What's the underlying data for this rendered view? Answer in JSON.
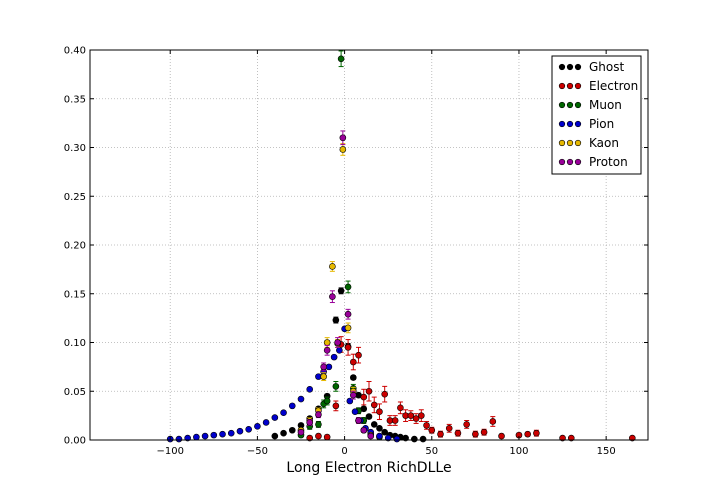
{
  "chart_data": {
    "type": "scatter",
    "title": "",
    "xlabel": "Long Electron RichDLLe",
    "ylabel": "",
    "xlim": [
      -146,
      174
    ],
    "ylim": [
      0,
      0.4
    ],
    "xticks": [
      -100,
      -50,
      0,
      50,
      100,
      150
    ],
    "yticks": [
      0.0,
      0.05,
      0.1,
      0.15,
      0.2,
      0.25,
      0.3,
      0.35,
      0.4
    ],
    "xtick_labels": [
      "−100",
      "−50",
      "0",
      "50",
      "100",
      "150"
    ],
    "ytick_labels": [
      "0.00",
      "0.05",
      "0.10",
      "0.15",
      "0.20",
      "0.25",
      "0.30",
      "0.35",
      "0.40"
    ],
    "grid": true,
    "legend_position": "upper right",
    "series": [
      {
        "name": "Ghost",
        "color": "#000000",
        "x": [
          -40,
          -35,
          -30,
          -25,
          -20,
          -15,
          -10,
          -5,
          -2,
          2,
          5,
          8,
          11,
          14,
          17,
          20,
          23,
          26,
          29,
          32,
          35,
          40,
          45
        ],
        "y": [
          0.004,
          0.007,
          0.01,
          0.015,
          0.022,
          0.032,
          0.045,
          0.123,
          0.153,
          0.096,
          0.064,
          0.046,
          0.032,
          0.024,
          0.016,
          0.012,
          0.008,
          0.005,
          0.004,
          0.003,
          0.002,
          0.001,
          0.001
        ],
        "err": [
          0.001,
          0.001,
          0.001,
          0.001,
          0.002,
          0.002,
          0.002,
          0.003,
          0.003,
          0.003,
          0.002,
          0.002,
          0.002,
          0.002,
          0.001,
          0.001,
          0.001,
          0.001,
          0.001,
          0.001,
          0.001,
          0.001,
          0.001
        ]
      },
      {
        "name": "Electron",
        "color": "#cc0000",
        "x": [
          -20,
          -15,
          -10,
          -5,
          -2,
          2,
          5,
          8,
          11,
          14,
          17,
          20,
          23,
          26,
          29,
          32,
          35,
          38,
          41,
          44,
          47,
          50,
          55,
          60,
          65,
          70,
          75,
          80,
          85,
          90,
          100,
          105,
          110,
          125,
          130,
          165
        ],
        "y": [
          0.002,
          0.004,
          0.003,
          0.035,
          0.098,
          0.095,
          0.08,
          0.087,
          0.044,
          0.05,
          0.036,
          0.029,
          0.047,
          0.02,
          0.02,
          0.033,
          0.025,
          0.025,
          0.022,
          0.025,
          0.015,
          0.01,
          0.006,
          0.012,
          0.007,
          0.016,
          0.006,
          0.008,
          0.019,
          0.004,
          0.005,
          0.006,
          0.007,
          0.002,
          0.002,
          0.002
        ],
        "err": [
          0.002,
          0.002,
          0.002,
          0.005,
          0.008,
          0.008,
          0.008,
          0.008,
          0.008,
          0.01,
          0.008,
          0.008,
          0.008,
          0.005,
          0.005,
          0.006,
          0.006,
          0.005,
          0.005,
          0.006,
          0.004,
          0.003,
          0.003,
          0.004,
          0.003,
          0.004,
          0.003,
          0.003,
          0.005,
          0.002,
          0.002,
          0.002,
          0.003,
          0.001,
          0.001,
          0.001
        ]
      },
      {
        "name": "Muon",
        "color": "#006600",
        "x": [
          -25,
          -20,
          -15,
          -12,
          -10,
          -5,
          -2,
          2,
          5,
          8,
          11,
          15,
          20
        ],
        "y": [
          0.005,
          0.014,
          0.016,
          0.037,
          0.04,
          0.055,
          0.391,
          0.157,
          0.053,
          0.03,
          0.02,
          0.007,
          0.003
        ],
        "err": [
          0.002,
          0.003,
          0.003,
          0.004,
          0.004,
          0.005,
          0.008,
          0.006,
          0.004,
          0.003,
          0.003,
          0.002,
          0.001
        ]
      },
      {
        "name": "Pion",
        "color": "#0000cc",
        "x": [
          -100,
          -95,
          -90,
          -85,
          -80,
          -75,
          -70,
          -65,
          -60,
          -55,
          -50,
          -45,
          -40,
          -35,
          -30,
          -25,
          -20,
          -15,
          -12,
          -9,
          -6,
          -3,
          0,
          3,
          6,
          9,
          12,
          15,
          20,
          25,
          30
        ],
        "y": [
          0.001,
          0.001,
          0.002,
          0.003,
          0.004,
          0.005,
          0.006,
          0.007,
          0.009,
          0.011,
          0.014,
          0.018,
          0.023,
          0.028,
          0.035,
          0.042,
          0.052,
          0.065,
          0.07,
          0.075,
          0.085,
          0.092,
          0.114,
          0.04,
          0.029,
          0.02,
          0.012,
          0.008,
          0.004,
          0.002,
          0.001
        ],
        "err": [
          0.0005,
          0.0005,
          0.0005,
          0.0005,
          0.0005,
          0.0005,
          0.0005,
          0.0005,
          0.0005,
          0.0005,
          0.0005,
          0.0005,
          0.0005,
          0.0005,
          0.0005,
          0.0005,
          0.0005,
          0.0005,
          0.0005,
          0.0005,
          0.0005,
          0.0005,
          0.0005,
          0.0005,
          0.0005,
          0.0005,
          0.0005,
          0.0005,
          0.0005,
          0.0005,
          0.0005
        ]
      },
      {
        "name": "Kaon",
        "color": "#e6b800",
        "x": [
          -25,
          -20,
          -15,
          -12,
          -10,
          -7,
          -4,
          -1,
          2,
          5,
          8,
          11,
          15
        ],
        "y": [
          0.01,
          0.02,
          0.03,
          0.065,
          0.1,
          0.178,
          0.099,
          0.298,
          0.115,
          0.05,
          0.02,
          0.01,
          0.005
        ],
        "err": [
          0.002,
          0.003,
          0.003,
          0.004,
          0.005,
          0.005,
          0.004,
          0.006,
          0.005,
          0.004,
          0.003,
          0.002,
          0.002
        ]
      },
      {
        "name": "Proton",
        "color": "#990099",
        "x": [
          -25,
          -20,
          -15,
          -12,
          -10,
          -7,
          -4,
          -1,
          2,
          5,
          8,
          11,
          15
        ],
        "y": [
          0.008,
          0.018,
          0.026,
          0.075,
          0.092,
          0.147,
          0.1,
          0.31,
          0.129,
          0.046,
          0.02,
          0.01,
          0.004
        ],
        "err": [
          0.002,
          0.003,
          0.003,
          0.004,
          0.005,
          0.006,
          0.005,
          0.007,
          0.005,
          0.004,
          0.003,
          0.002,
          0.002
        ]
      }
    ]
  }
}
